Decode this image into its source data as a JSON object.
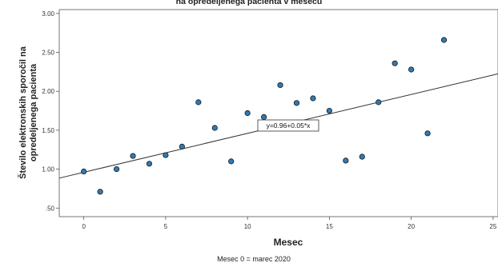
{
  "chart_data": {
    "type": "scatter",
    "title": "na opredeljenega pacienta v mesecu",
    "xlabel": "Mesec",
    "ylabel_lines": [
      "Število elektronskih sporočil na",
      "opredeljenega pacienta"
    ],
    "note": "Mesec 0 = marec 2020",
    "xlim": [
      -1.5,
      25.3
    ],
    "ylim": [
      0.39,
      3.05
    ],
    "x_ticks": [
      0,
      5,
      10,
      15,
      20,
      25
    ],
    "x_tick_labels": [
      "0",
      "5",
      "10",
      "15",
      "20",
      "25"
    ],
    "y_ticks": [
      0.5,
      1.0,
      1.5,
      2.0,
      2.5,
      3.0
    ],
    "y_tick_labels": [
      ".50",
      "1.00",
      "1.50",
      "2.00",
      "2.50",
      "3.00"
    ],
    "points": [
      {
        "x": 0,
        "y": 0.97
      },
      {
        "x": 1,
        "y": 0.71
      },
      {
        "x": 2,
        "y": 1.0
      },
      {
        "x": 3,
        "y": 1.17
      },
      {
        "x": 4,
        "y": 1.07
      },
      {
        "x": 5,
        "y": 1.18
      },
      {
        "x": 6,
        "y": 1.29
      },
      {
        "x": 7,
        "y": 1.86
      },
      {
        "x": 8,
        "y": 1.53
      },
      {
        "x": 9,
        "y": 1.1
      },
      {
        "x": 10,
        "y": 1.72
      },
      {
        "x": 11,
        "y": 1.67
      },
      {
        "x": 12,
        "y": 2.08
      },
      {
        "x": 13,
        "y": 1.85
      },
      {
        "x": 14,
        "y": 1.91
      },
      {
        "x": 15,
        "y": 1.75
      },
      {
        "x": 16,
        "y": 1.11
      },
      {
        "x": 17,
        "y": 1.16
      },
      {
        "x": 18,
        "y": 1.86
      },
      {
        "x": 19,
        "y": 2.36
      },
      {
        "x": 20,
        "y": 2.28
      },
      {
        "x": 21,
        "y": 1.46
      },
      {
        "x": 22,
        "y": 2.66
      }
    ],
    "fit_line": {
      "intercept": 0.96,
      "slope": 0.05,
      "label": "y=0.96+0.05*x"
    },
    "grid": false,
    "colors": {
      "point_fill": "#2e7ab5",
      "point_stroke": "#1a1a1a",
      "line": "#333333",
      "axis": "#555555"
    }
  }
}
